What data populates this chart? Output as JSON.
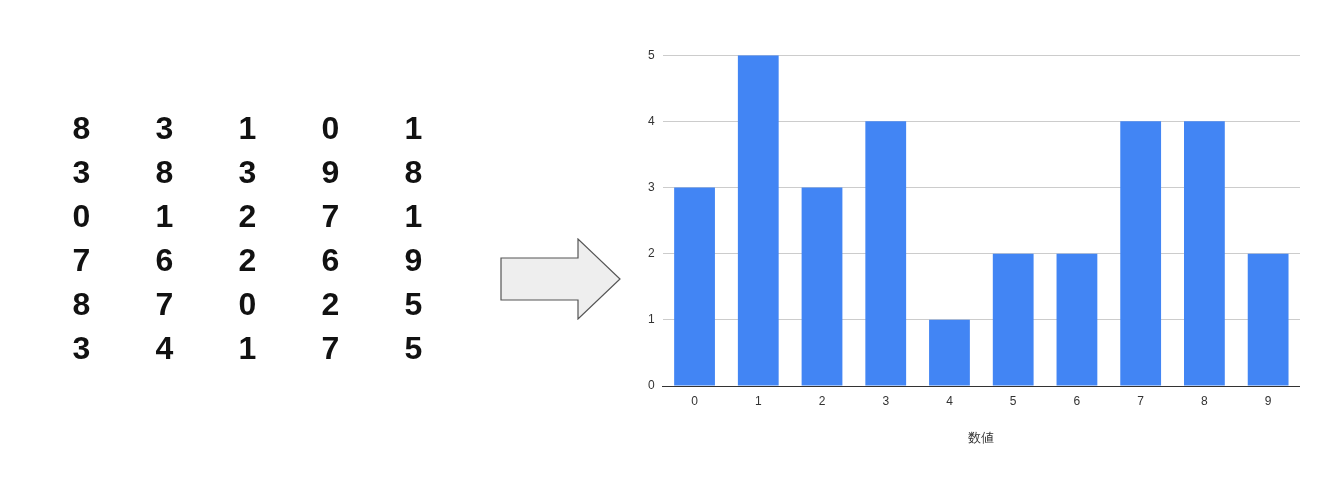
{
  "chart_data": [
    {
      "type": "other",
      "annotations": [
        "8",
        "3",
        "1",
        "0",
        "1",
        "3",
        "8",
        "3",
        "9",
        "8",
        "0",
        "1",
        "2",
        "7",
        "1",
        "7",
        "6",
        "2",
        "6",
        "9",
        "8",
        "7",
        "0",
        "2",
        "5",
        "3",
        "4",
        "1",
        "7",
        "5"
      ]
    },
    {
      "type": "bar",
      "xlabel": "数値",
      "categories": [
        "0",
        "1",
        "2",
        "3",
        "4",
        "5",
        "6",
        "7",
        "8",
        "9"
      ],
      "values": [
        3,
        5,
        3,
        4,
        1,
        2,
        2,
        4,
        4,
        2
      ],
      "color": "#4285f4",
      "ylim": [
        0,
        5
      ],
      "yticks": [
        0,
        1,
        2,
        3,
        4,
        5
      ],
      "grid": "y",
      "legend": false
    }
  ]
}
